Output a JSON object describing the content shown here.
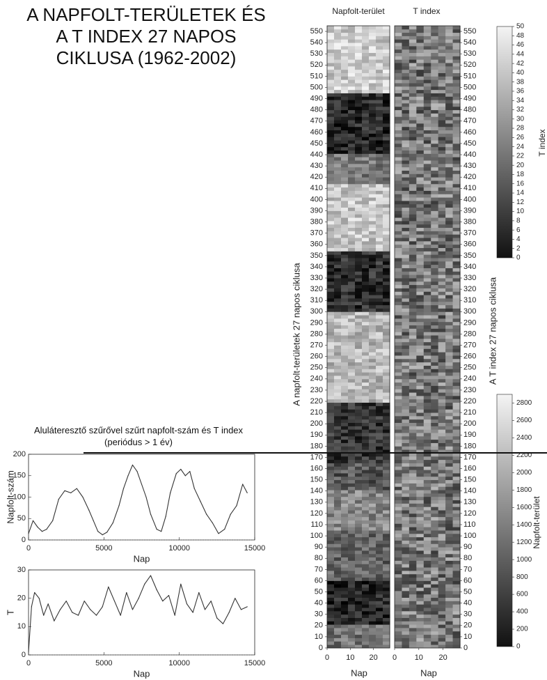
{
  "title_lines": [
    "A NAPFOLT-TERÜLETEK ÉS",
    "A T INDEX 27 NAPOS",
    "CIKLUSA (1962-2002)"
  ],
  "lowpass_title_lines": [
    "Aluláteresztő szűrővel szűrt napfolt-szám és T index",
    "(periódus > 1 év)"
  ],
  "colors": {
    "line": "#333333",
    "axis": "#222222",
    "dotted": "#777777",
    "bg": "#ffffff"
  },
  "chart_data": [
    {
      "type": "heatmap",
      "title": "Napfolt-terület",
      "xlabel": "Nap",
      "ylabel": "A napfolt-területek 27 napos ciklusa",
      "x_ticks": [
        0,
        10,
        20
      ],
      "xlim": [
        0,
        27
      ],
      "y_ticks": [
        0,
        10,
        20,
        30,
        40,
        50,
        60,
        70,
        80,
        90,
        100,
        110,
        120,
        130,
        140,
        150,
        160,
        170,
        180,
        190,
        200,
        210,
        220,
        230,
        240,
        250,
        260,
        270,
        280,
        290,
        300,
        310,
        320,
        330,
        340,
        350,
        360,
        370,
        380,
        390,
        400,
        410,
        420,
        430,
        440,
        450,
        460,
        470,
        480,
        490,
        500,
        510,
        520,
        530,
        540,
        550
      ],
      "ylim": [
        0,
        555
      ],
      "colorbar": {
        "label": "Napfolt-terület",
        "ticks": [
          0,
          200,
          400,
          600,
          800,
          1000,
          1200,
          1400,
          1600,
          1800,
          2000,
          2200,
          2400,
          2600,
          2800
        ],
        "range": [
          0,
          2900
        ]
      },
      "row_bands": [
        {
          "from": 0,
          "to": 20,
          "level": 0.42
        },
        {
          "from": 20,
          "to": 60,
          "level": 0.1
        },
        {
          "from": 60,
          "to": 105,
          "level": 0.36
        },
        {
          "from": 105,
          "to": 140,
          "level": 0.52
        },
        {
          "from": 140,
          "to": 165,
          "level": 0.3
        },
        {
          "from": 165,
          "to": 218,
          "level": 0.16
        },
        {
          "from": 218,
          "to": 300,
          "level": 0.72
        },
        {
          "from": 300,
          "to": 352,
          "level": 0.14
        },
        {
          "from": 352,
          "to": 412,
          "level": 0.78
        },
        {
          "from": 412,
          "to": 440,
          "level": 0.45
        },
        {
          "from": 440,
          "to": 495,
          "level": 0.11
        },
        {
          "from": 495,
          "to": 555,
          "level": 0.8
        }
      ]
    },
    {
      "type": "heatmap",
      "title": "T index",
      "xlabel": "Nap",
      "ylabel": "A T index 27 napos ciklusa",
      "x_ticks": [
        0,
        10,
        20
      ],
      "xlim": [
        0,
        27
      ],
      "y_ticks": [
        0,
        10,
        20,
        30,
        40,
        50,
        60,
        70,
        80,
        90,
        100,
        110,
        120,
        130,
        140,
        150,
        160,
        170,
        180,
        190,
        200,
        210,
        220,
        230,
        240,
        250,
        260,
        270,
        280,
        290,
        300,
        310,
        320,
        330,
        340,
        350,
        360,
        370,
        380,
        390,
        400,
        410,
        420,
        430,
        440,
        450,
        460,
        470,
        480,
        490,
        500,
        510,
        520,
        530,
        540,
        550
      ],
      "ylim": [
        0,
        555
      ],
      "colorbar": {
        "label": "T index",
        "ticks": [
          0,
          2,
          4,
          6,
          8,
          10,
          12,
          14,
          16,
          18,
          20,
          22,
          24,
          26,
          28,
          30,
          32,
          34,
          36,
          38,
          40,
          42,
          44,
          46,
          48,
          50
        ],
        "range": [
          0,
          50
        ]
      },
      "mean_level": 0.45
    },
    {
      "type": "line",
      "ylabel": "Napfolt-szám",
      "xlabel": "Nap",
      "x_ticks": [
        0,
        5000,
        10000,
        15000
      ],
      "y_ticks": [
        0,
        50,
        100,
        150,
        200
      ],
      "xlim": [
        0,
        15000
      ],
      "ylim": [
        0,
        200
      ],
      "x": [
        0,
        300,
        600,
        900,
        1200,
        1600,
        2000,
        2400,
        2800,
        3200,
        3600,
        4000,
        4300,
        4600,
        4900,
        5200,
        5600,
        6000,
        6300,
        6600,
        6900,
        7200,
        7500,
        7800,
        8100,
        8500,
        8800,
        9100,
        9400,
        9800,
        10100,
        10400,
        10700,
        11000,
        11400,
        11800,
        12200,
        12600,
        13000,
        13400,
        13800,
        14200,
        14500
      ],
      "values": [
        15,
        45,
        30,
        20,
        25,
        45,
        95,
        115,
        110,
        120,
        100,
        70,
        45,
        20,
        12,
        18,
        40,
        80,
        120,
        150,
        175,
        160,
        130,
        100,
        60,
        25,
        20,
        55,
        110,
        155,
        165,
        150,
        160,
        120,
        90,
        60,
        40,
        15,
        25,
        60,
        80,
        130,
        110
      ]
    },
    {
      "type": "line",
      "ylabel": "T",
      "xlabel": "Nap",
      "x_ticks": [
        0,
        5000,
        10000,
        15000
      ],
      "y_ticks": [
        0,
        10,
        20,
        30
      ],
      "xlim": [
        0,
        15000
      ],
      "ylim": [
        0,
        30
      ],
      "x": [
        0,
        200,
        400,
        700,
        1000,
        1300,
        1700,
        2100,
        2500,
        2900,
        3300,
        3700,
        4100,
        4500,
        4900,
        5300,
        5700,
        6100,
        6500,
        6900,
        7300,
        7700,
        8100,
        8500,
        8900,
        9300,
        9700,
        10100,
        10500,
        10900,
        11300,
        11700,
        12100,
        12500,
        12900,
        13300,
        13700,
        14100,
        14500
      ],
      "values": [
        1,
        17,
        22,
        20,
        14,
        18,
        12,
        16,
        19,
        15,
        14,
        19,
        16,
        14,
        17,
        24,
        19,
        14,
        22,
        16,
        20,
        25,
        28,
        23,
        19,
        21,
        14,
        25,
        18,
        15,
        22,
        16,
        19,
        13,
        11,
        15,
        20,
        16,
        17
      ]
    }
  ]
}
